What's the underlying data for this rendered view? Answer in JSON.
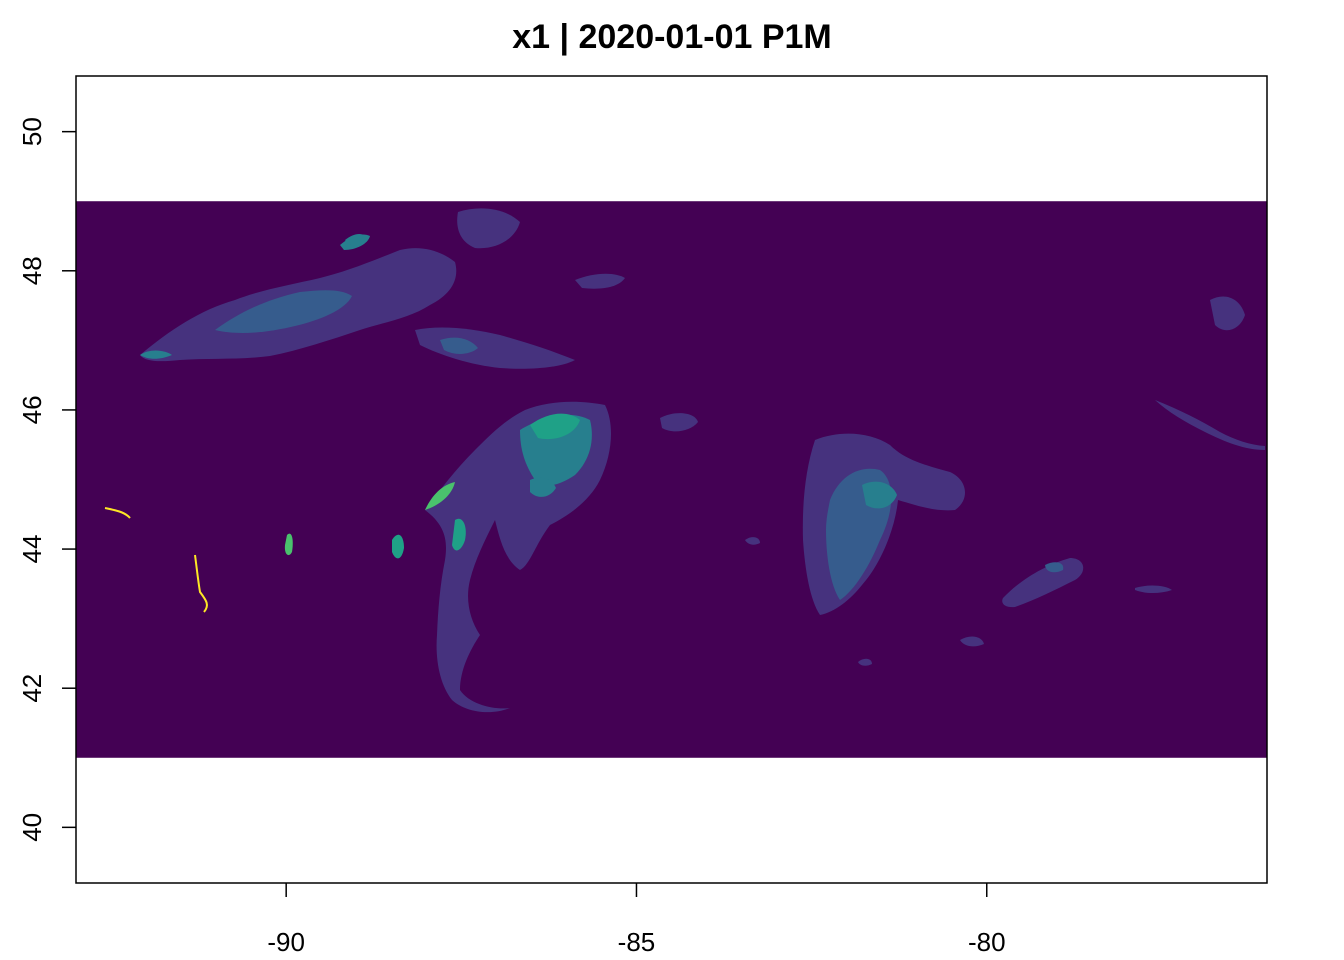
{
  "title": "x1 | 2020-01-01 P1M",
  "x_axis": {
    "ticks": [
      {
        "value": -90,
        "label": "-90"
      },
      {
        "value": -85,
        "label": "-85"
      },
      {
        "value": -80,
        "label": "-80"
      }
    ],
    "range": [
      -93,
      -76
    ]
  },
  "y_axis": {
    "ticks": [
      {
        "value": 40,
        "label": "40"
      },
      {
        "value": 42,
        "label": "42"
      },
      {
        "value": 44,
        "label": "44"
      },
      {
        "value": 46,
        "label": "46"
      },
      {
        "value": 48,
        "label": "48"
      },
      {
        "value": 50,
        "label": "50"
      }
    ],
    "range": [
      39.2,
      50.8
    ]
  },
  "raster": {
    "extent_lon": [
      -93,
      -76
    ],
    "extent_lat": [
      41,
      49
    ],
    "palette": {
      "background": "#440154",
      "level1": "#46327e",
      "level2": "#365c8d",
      "level3": "#277f8e",
      "level4": "#1fa187",
      "level5": "#4ac16d",
      "level6": "#a0da39",
      "level7": "#fde725"
    }
  }
}
